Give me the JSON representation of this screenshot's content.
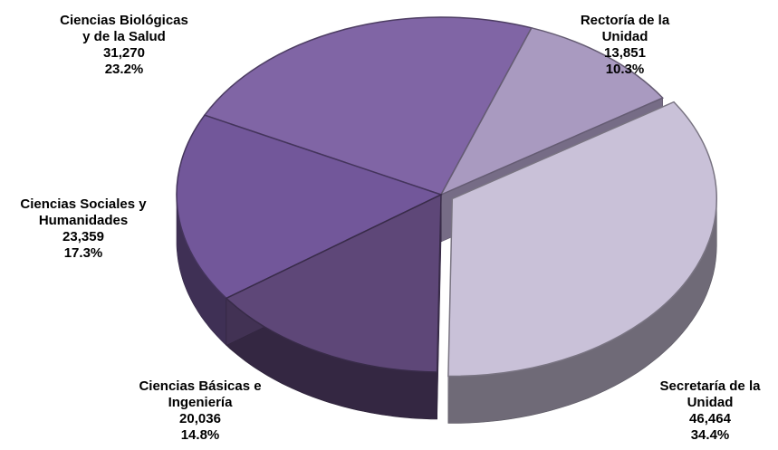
{
  "chart_data": {
    "type": "pie",
    "three_d": true,
    "exploded": true,
    "title": "",
    "slices": [
      {
        "label_lines": [
          "Rectoría de la",
          "Unidad"
        ],
        "value": 13851,
        "value_text": "13,851",
        "percent": 10.3,
        "percent_text": "10.3%",
        "color": "#a99ac0"
      },
      {
        "label_lines": [
          "Secretaría de la",
          "Unidad"
        ],
        "value": 46464,
        "value_text": "46,464",
        "percent": 34.4,
        "percent_text": "34.4%",
        "color": "#c9c1d8"
      },
      {
        "label_lines": [
          "Ciencias Básicas e",
          "Ingeniería"
        ],
        "value": 20036,
        "value_text": "20,036",
        "percent": 14.8,
        "percent_text": "14.8%",
        "color": "#5e4778"
      },
      {
        "label_lines": [
          "Ciencias Sociales y",
          "Humanidades"
        ],
        "value": 23359,
        "value_text": "23,359",
        "percent": 17.3,
        "percent_text": "17.3%",
        "color": "#72579a"
      },
      {
        "label_lines": [
          "Ciencias Biológicas",
          "y de la Salud"
        ],
        "value": 31270,
        "value_text": "31,270",
        "percent": 23.2,
        "percent_text": "23.2%",
        "color": "#8065a5"
      }
    ]
  }
}
